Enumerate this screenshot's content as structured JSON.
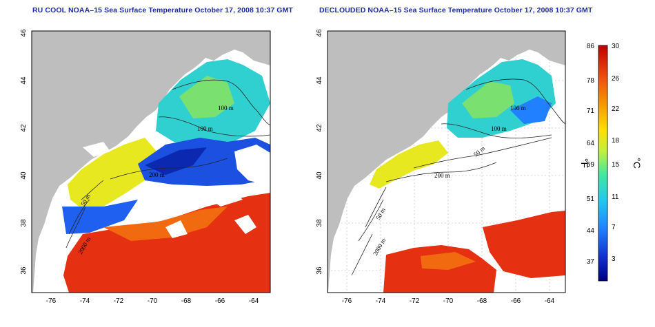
{
  "titles": {
    "left": "RU COOL NOAA–15 Sea Surface Temperature October 17, 2008 10:37 GMT",
    "right": "DECLOUDED NOAA–15 Sea Surface Temperature October 17, 2008 10:37 GMT"
  },
  "axes": {
    "lon_ticks": [
      "-76",
      "-74",
      "-72",
      "-70",
      "-68",
      "-66",
      "-64"
    ],
    "lat_ticks": [
      "36",
      "38",
      "40",
      "42",
      "44",
      "46"
    ],
    "lon_range": [
      -77,
      -63
    ],
    "lat_range": [
      35,
      46
    ]
  },
  "contour_labels": {
    "left": [
      "100 m",
      "100 m",
      "200 m",
      "50 m",
      "2000 m"
    ],
    "right": [
      "100 m",
      "100 m",
      "50 m",
      "200 m",
      "50 m",
      "2000 m"
    ]
  },
  "colorbar": {
    "fahrenheit_ticks": [
      "86",
      "78",
      "71",
      "64",
      "59",
      "51",
      "44",
      "37"
    ],
    "celsius_ticks": [
      "30",
      "26",
      "22",
      "18",
      "15",
      "11",
      "7",
      "3"
    ],
    "fahrenheit_unit": "°F",
    "celsius_unit": "°C",
    "colors": [
      "#d00000",
      "#f05010",
      "#f5a000",
      "#ffe000",
      "#c0f040",
      "#40e8a0",
      "#20c8f0",
      "#2080ff",
      "#1030d0",
      "#000080"
    ]
  },
  "colors": {
    "land": "#bebebe",
    "cloud": "#ffffff",
    "title": "#1a2aa8"
  }
}
